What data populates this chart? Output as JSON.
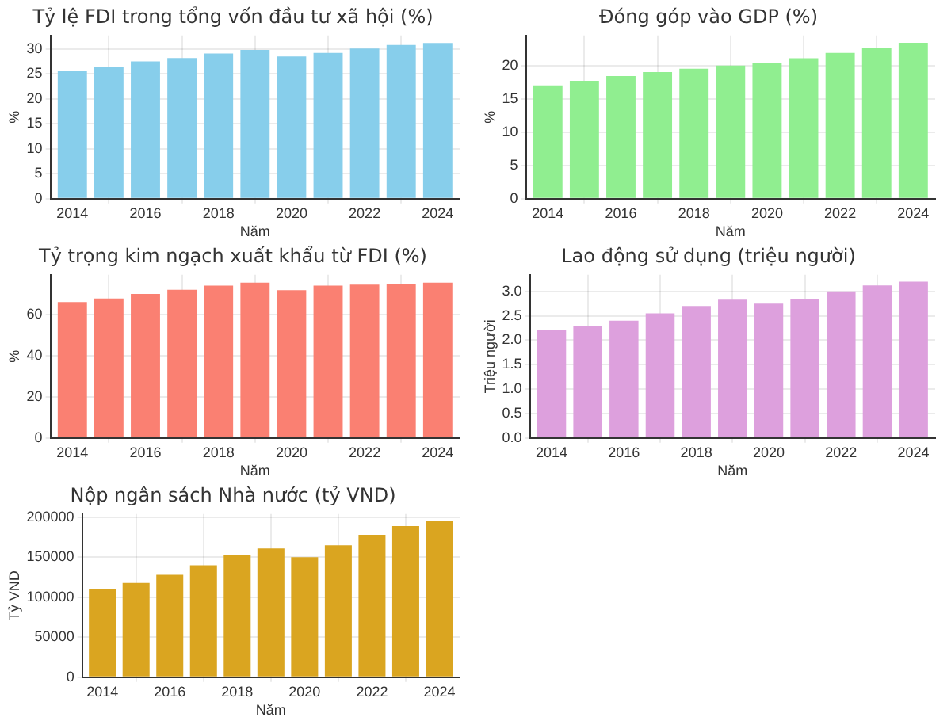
{
  "chart_data": [
    {
      "type": "bar",
      "title": "Tỷ lệ FDI trong tổng vốn đầu tư xã hội (%)",
      "xlabel": "Năm",
      "ylabel": "%",
      "x": [
        2014,
        2015,
        2016,
        2017,
        2018,
        2019,
        2020,
        2021,
        2022,
        2023,
        2024
      ],
      "values": [
        25.6,
        26.4,
        27.5,
        28.2,
        29.1,
        29.8,
        28.5,
        29.2,
        30.1,
        30.8,
        31.2
      ],
      "color": "#87ceeb",
      "xlim": [
        2013.4,
        2024.6
      ],
      "xticks": [
        2014,
        2016,
        2018,
        2020,
        2022,
        2024
      ],
      "ylim": [
        0,
        32.7
      ],
      "yticks": [
        0,
        5,
        10,
        15,
        20,
        25,
        30
      ],
      "grid": true
    },
    {
      "type": "bar",
      "title": "Đóng góp vào GDP (%)",
      "xlabel": "Năm",
      "ylabel": "%",
      "x": [
        2014,
        2015,
        2016,
        2017,
        2018,
        2019,
        2020,
        2021,
        2022,
        2023,
        2024
      ],
      "values": [
        17,
        17.7,
        18.4,
        19,
        19.5,
        20,
        20.4,
        21.1,
        21.9,
        22.7,
        23.4
      ],
      "color": "#90ee90",
      "xlim": [
        2013.4,
        2024.6
      ],
      "xticks": [
        2014,
        2016,
        2018,
        2020,
        2022,
        2024
      ],
      "ylim": [
        0,
        24.5
      ],
      "yticks": [
        0,
        5,
        10,
        15,
        20
      ],
      "grid": true
    },
    {
      "type": "bar",
      "title": "Tỷ trọng kim ngạch xuất khẩu từ FDI (%)",
      "xlabel": "Năm",
      "ylabel": "%",
      "x": [
        2014,
        2015,
        2016,
        2017,
        2018,
        2019,
        2020,
        2021,
        2022,
        2023,
        2024
      ],
      "values": [
        66,
        67.8,
        70,
        72,
        74,
        75.5,
        71.8,
        74,
        74.5,
        75,
        75.5
      ],
      "color": "#fa8072",
      "xlim": [
        2013.4,
        2024.6
      ],
      "xticks": [
        2014,
        2016,
        2018,
        2020,
        2022,
        2024
      ],
      "ylim": [
        0,
        79.3
      ],
      "yticks": [
        0,
        20,
        40,
        60
      ],
      "grid": true
    },
    {
      "type": "bar",
      "title": "Lao động sử dụng (triệu người)",
      "xlabel": "Năm",
      "ylabel": "Triệu người",
      "x": [
        2014,
        2015,
        2016,
        2017,
        2018,
        2019,
        2020,
        2021,
        2022,
        2023,
        2024
      ],
      "values": [
        2.2,
        2.3,
        2.4,
        2.55,
        2.7,
        2.83,
        2.75,
        2.85,
        3.0,
        3.12,
        3.2
      ],
      "color": "#dda0dd",
      "xlim": [
        2013.4,
        2024.6
      ],
      "xticks": [
        2014,
        2016,
        2018,
        2020,
        2022,
        2024
      ],
      "ylim": [
        0,
        3.34
      ],
      "yticks": [
        {
          "value": 0,
          "label": "0.0"
        },
        0.5,
        {
          "value": 1,
          "label": "1.0"
        },
        1.5,
        {
          "value": 2,
          "label": "2.0"
        },
        2.5,
        {
          "value": 3,
          "label": "3.0"
        }
      ],
      "grid": true
    },
    {
      "type": "bar",
      "title": "Nộp ngân sách Nhà nước (tỷ VND)",
      "xlabel": "Năm",
      "ylabel": "Tỷ VND",
      "x": [
        2014,
        2015,
        2016,
        2017,
        2018,
        2019,
        2020,
        2021,
        2022,
        2023,
        2024
      ],
      "values": [
        110000,
        118000,
        128000,
        140000,
        153000,
        161000,
        150000,
        165000,
        178000,
        189000,
        195000
      ],
      "color": "#daa520",
      "xlim": [
        2013.4,
        2024.6
      ],
      "xticks": [
        2014,
        2016,
        2018,
        2020,
        2022,
        2024
      ],
      "ylim": [
        0,
        204000
      ],
      "yticks": [
        0,
        50000,
        100000,
        150000,
        200000
      ],
      "grid": true
    }
  ]
}
